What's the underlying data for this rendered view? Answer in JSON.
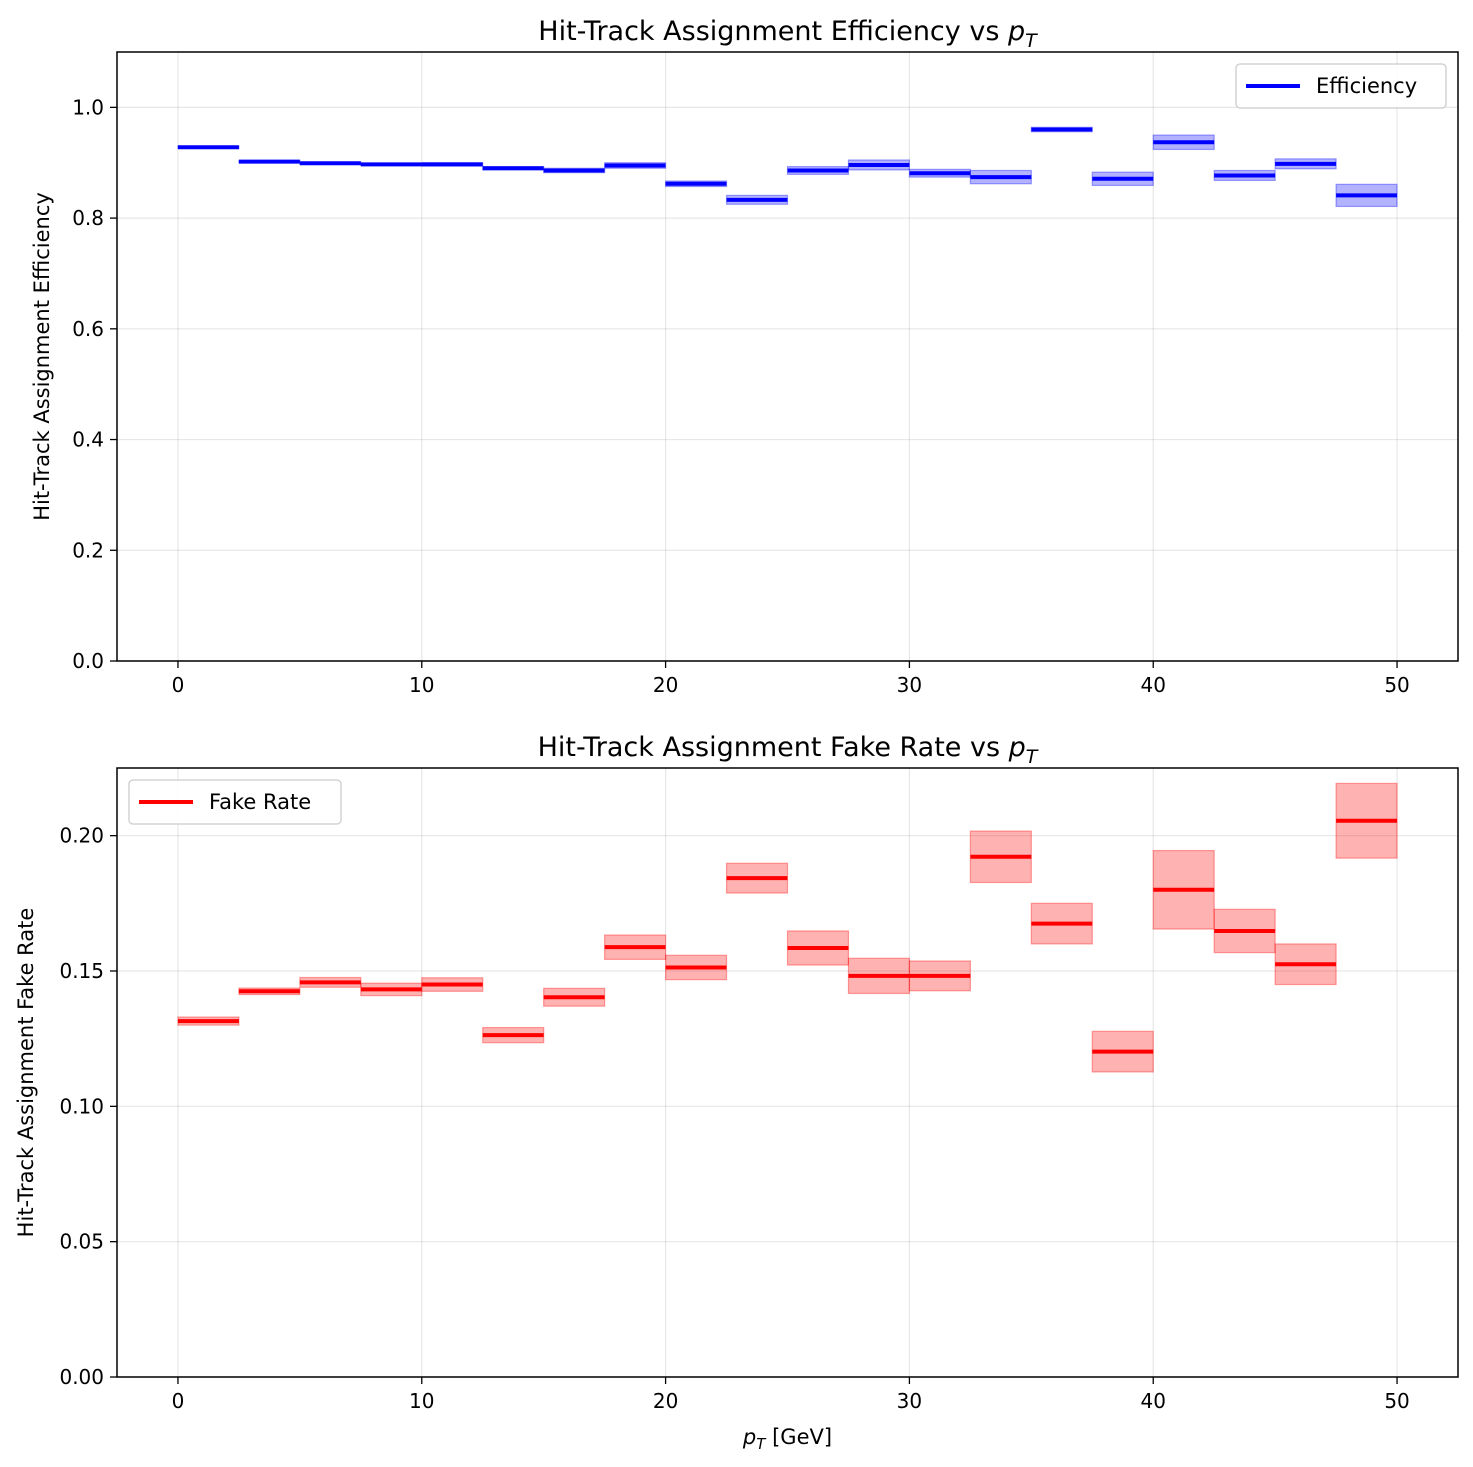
{
  "chart_data": [
    {
      "type": "step",
      "title_main": "Hit-Track Assignment Efficiency vs ",
      "title_var": "p",
      "title_sub": "T",
      "xlabel": "",
      "ylabel": "Hit-Track Assignment Efficiency",
      "xlim": [
        -2.5,
        52.5
      ],
      "ylim": [
        0.0,
        1.1
      ],
      "xticks": [
        "0",
        "10",
        "20",
        "30",
        "40",
        "50"
      ],
      "xtick_values": [
        0,
        10,
        20,
        30,
        40,
        50
      ],
      "yticks": [
        "0.0",
        "0.2",
        "0.4",
        "0.6",
        "0.8",
        "1.0"
      ],
      "ytick_values": [
        0.0,
        0.2,
        0.4,
        0.6,
        0.8,
        1.0
      ],
      "grid": true,
      "legend_position": "upper right",
      "series": [
        {
          "name": "Efficiency",
          "color": "#0000ff",
          "band_color": "#0000ff",
          "bin_edges": [
            0,
            2.5,
            5,
            7.5,
            10,
            12.5,
            15,
            17.5,
            20,
            22.5,
            25,
            27.5,
            30,
            32.5,
            35,
            37.5,
            40,
            42.5,
            45,
            47.5,
            50
          ],
          "values": [
            0.928,
            0.902,
            0.899,
            0.897,
            0.897,
            0.89,
            0.886,
            0.895,
            0.862,
            0.833,
            0.886,
            0.896,
            0.881,
            0.874,
            0.96,
            0.871,
            0.937,
            0.877,
            0.898,
            0.841
          ],
          "errors": [
            0.002,
            0.002,
            0.002,
            0.002,
            0.003,
            0.003,
            0.004,
            0.005,
            0.005,
            0.008,
            0.007,
            0.009,
            0.007,
            0.012,
            0.004,
            0.012,
            0.013,
            0.009,
            0.009,
            0.02
          ]
        }
      ]
    },
    {
      "type": "step",
      "title_main": "Hit-Track Assignment Fake Rate vs ",
      "title_var": "p",
      "title_sub": "T",
      "xlabel_var": "p",
      "xlabel_sub": "T",
      "xlabel_unit": " [GeV]",
      "ylabel": "Hit-Track Assignment Fake Rate",
      "xlim": [
        -2.5,
        52.5
      ],
      "ylim": [
        0.0,
        0.225
      ],
      "xticks": [
        "0",
        "10",
        "20",
        "30",
        "40",
        "50"
      ],
      "xtick_values": [
        0,
        10,
        20,
        30,
        40,
        50
      ],
      "yticks": [
        "0.00",
        "0.05",
        "0.10",
        "0.15",
        "0.20"
      ],
      "ytick_values": [
        0.0,
        0.05,
        0.1,
        0.15,
        0.2
      ],
      "grid": true,
      "legend_position": "upper left",
      "series": [
        {
          "name": "Fake Rate",
          "color": "#ff0000",
          "band_color": "#ff0000",
          "bin_edges": [
            0,
            2.5,
            5,
            7.5,
            10,
            12.5,
            15,
            17.5,
            20,
            22.5,
            25,
            27.5,
            30,
            32.5,
            35,
            37.5,
            40,
            42.5,
            45,
            47.5,
            50
          ],
          "values": [
            0.1315,
            0.1425,
            0.1458,
            0.1432,
            0.145,
            0.1263,
            0.1403,
            0.1588,
            0.1513,
            0.1843,
            0.1585,
            0.1482,
            0.1482,
            0.1922,
            0.1675,
            0.1202,
            0.18,
            0.1648,
            0.1525,
            0.2055
          ],
          "errors": [
            0.0015,
            0.0012,
            0.0018,
            0.0023,
            0.0025,
            0.0028,
            0.0033,
            0.0045,
            0.0045,
            0.0055,
            0.0063,
            0.0065,
            0.0055,
            0.0095,
            0.0075,
            0.0075,
            0.0145,
            0.008,
            0.0075,
            0.0138
          ]
        }
      ]
    }
  ]
}
